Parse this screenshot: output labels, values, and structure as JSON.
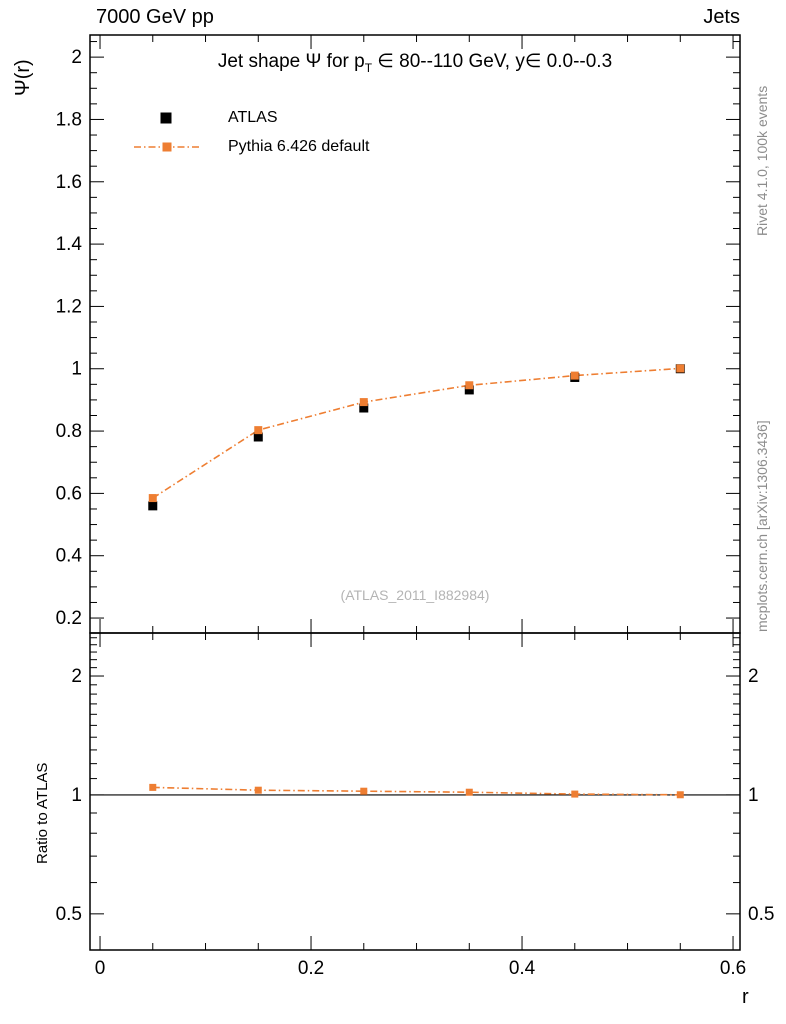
{
  "header": {
    "left": "7000 GeV pp",
    "right": "Jets"
  },
  "side_notes": {
    "top": "Rivet 4.1.0, 100k events",
    "bottom": "mcplots.cern.ch [arXiv:1306.3436]"
  },
  "watermark": "(ATLAS_2011_I882984)",
  "chart_data": {
    "type": "line",
    "title_parts": {
      "pre": "Jet shape Ψ for p",
      "sub": "T",
      "post": " ∈ 80--110 GeV, y∈ 0.0--0.3"
    },
    "xlabel": "r",
    "ylabel": "Ψ(r)",
    "ratio_label": "Ratio to ATLAS",
    "x": [
      0.05,
      0.15,
      0.25,
      0.35,
      0.45,
      0.55
    ],
    "series": [
      {
        "name": "ATLAS",
        "kind": "data",
        "color": "#000000",
        "marker": "square",
        "values": [
          0.56,
          0.781,
          0.874,
          0.932,
          0.972,
          1.0
        ]
      },
      {
        "name": "Pythia 6.426 default",
        "kind": "mc",
        "color": "#ee7e32",
        "marker": "square",
        "line": "dash-dot",
        "values": [
          0.585,
          0.803,
          0.893,
          0.947,
          0.978,
          1.001
        ]
      }
    ],
    "ratio": {
      "reference": 1.0,
      "values": [
        1.045,
        1.028,
        1.022,
        1.016,
        1.005,
        1.001
      ]
    },
    "axes": {
      "x": {
        "scale": "linear",
        "min": -0.0095,
        "max": 0.6066,
        "majors": [
          0,
          0.2,
          0.4,
          0.6
        ],
        "labels": [
          "0",
          "0.2",
          "0.4",
          "0.6"
        ],
        "minor_step": 0.05
      },
      "y_main": {
        "scale": "linear",
        "min": 0.152,
        "max": 2.071,
        "majors": [
          0.2,
          0.4,
          0.6,
          0.8,
          1,
          1.2,
          1.4,
          1.6,
          1.8,
          2
        ],
        "labels": [
          "0.2",
          "0.4",
          "0.6",
          "0.8",
          "1",
          "1.2",
          "1.4",
          "1.6",
          "1.8",
          "2"
        ],
        "minor_step": 0.05
      },
      "y_ratio": {
        "scale": "log",
        "min": 0.405,
        "max": 2.57,
        "majors": [
          0.5,
          1,
          2
        ],
        "labels": [
          "0.5",
          "1",
          "2"
        ],
        "minors": [
          0.6,
          0.7,
          0.8,
          0.9,
          1.1,
          1.2,
          1.3,
          1.4,
          1.5,
          1.6,
          1.7,
          1.8,
          1.9,
          2.1,
          2.2,
          2.3,
          2.4,
          2.5
        ]
      }
    }
  }
}
